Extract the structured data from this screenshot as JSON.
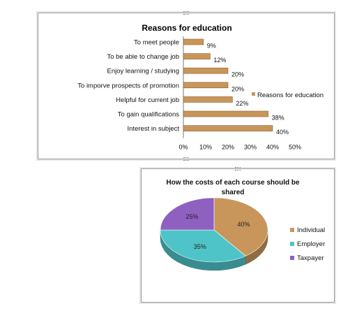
{
  "chart_data": [
    {
      "type": "bar",
      "orientation": "horizontal",
      "title": "Reasons for education",
      "categories": [
        "To meet people",
        "To be able to change job",
        "Enjoy learning / studying",
        "To imporve prospects of promotion",
        "Helpful for current job",
        "To gain qualifications",
        "Interest in subject"
      ],
      "series": [
        {
          "name": "Reasons for education",
          "values": [
            9,
            12,
            20,
            20,
            22,
            38,
            40
          ],
          "labels": [
            "9%",
            "12%",
            "20%",
            "20%",
            "22%",
            "38%",
            "40%"
          ]
        }
      ],
      "xlim": [
        0,
        50
      ],
      "xticks": [
        "0%",
        "10%",
        "20%",
        "30%",
        "40%",
        "50%"
      ],
      "legend": "right",
      "grid": false,
      "colors": {
        "bar": "#c8965b",
        "bar_edge": "#8a5a2b"
      }
    },
    {
      "type": "pie",
      "style": "3d",
      "title_lines": [
        "How the costs of each course should be",
        "shared"
      ],
      "categories": [
        "Individual",
        "Employer",
        "Taxpayer"
      ],
      "values": [
        40,
        35,
        25
      ],
      "labels": [
        "40%",
        "35%",
        "25%"
      ],
      "legend": "right",
      "colors": [
        "#c8965b",
        "#4fc4c8",
        "#8e60c0"
      ]
    }
  ]
}
